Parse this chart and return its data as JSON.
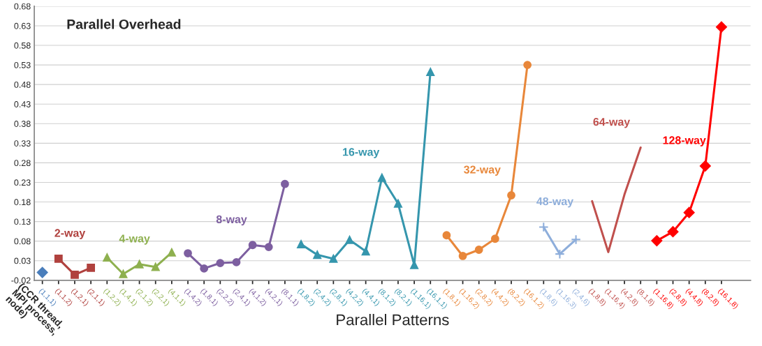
{
  "chart_data": {
    "type": "line",
    "title": "Parallel Overhead",
    "xlabel": "Parallel Patterns",
    "categories": [
      "(1,1,1)",
      "(1,1,2)",
      "(1,2,1)",
      "(2,1,1)",
      "(1,2,2)",
      "(1,4,1)",
      "(2,1,2)",
      "(2,2,1)",
      "(4,1,1)",
      "(1,4,2)",
      "(1,8,1)",
      "(2,2,2)",
      "(2,4,1)",
      "(4,1,2)",
      "(4,2,1)",
      "(8,1,1)",
      "(1,8,2)",
      "(2,4,2)",
      "(2,8,1)",
      "(4,2,2)",
      "(4,4,1)",
      "(8,1,2)",
      "(8,2,1)",
      "(1,16,1)",
      "(16,1,1)",
      "(1,8,1)",
      "(1,16,2)",
      "(2,8,2)",
      "(4,4,2)",
      "(8,2,2)",
      "(16,1,2)",
      "(1,8,6)",
      "(1,16,3)",
      "(2,4,6)",
      "(1,8,8)",
      "(1,16,4)",
      "(4,2,8)",
      "(8,1,8)",
      "(1,16,8)",
      "(2,8,8)",
      "(4,4,8)",
      "(8,2,8)",
      "(16,1,8)"
    ],
    "series": [
      {
        "color": "#4a7ebb",
        "marker": "diamond",
        "values": [
          0.0,
          null,
          null,
          null,
          null,
          null,
          null,
          null,
          null,
          null,
          null,
          null,
          null,
          null,
          null,
          null,
          null,
          null,
          null,
          null,
          null,
          null,
          null,
          null,
          null,
          null,
          null,
          null,
          null,
          null,
          null,
          null,
          null,
          null,
          null,
          null,
          null,
          null,
          null,
          null,
          null,
          null,
          null
        ]
      },
      {
        "name": "2-way",
        "color": "#b0413e",
        "marker": "square",
        "values": [
          null,
          0.035,
          -0.006,
          0.012,
          null,
          null,
          null,
          null,
          null,
          null,
          null,
          null,
          null,
          null,
          null,
          null,
          null,
          null,
          null,
          null,
          null,
          null,
          null,
          null,
          null,
          null,
          null,
          null,
          null,
          null,
          null,
          null,
          null,
          null,
          null,
          null,
          null,
          null,
          null,
          null,
          null,
          null,
          null
        ]
      },
      {
        "name": "4-way",
        "color": "#8eb04f",
        "marker": "triangle",
        "values": [
          null,
          null,
          null,
          null,
          0.038,
          -0.004,
          0.021,
          0.014,
          0.051,
          null,
          null,
          null,
          null,
          null,
          null,
          null,
          null,
          null,
          null,
          null,
          null,
          null,
          null,
          null,
          null,
          null,
          null,
          null,
          null,
          null,
          null,
          null,
          null,
          null,
          null,
          null,
          null,
          null,
          null,
          null,
          null,
          null,
          null
        ]
      },
      {
        "name": "8-way",
        "color": "#7d5fa0",
        "marker": "circle",
        "values": [
          null,
          null,
          null,
          null,
          null,
          null,
          null,
          null,
          null,
          0.049,
          0.01,
          0.024,
          0.026,
          0.07,
          0.065,
          0.226,
          null,
          null,
          null,
          null,
          null,
          null,
          null,
          null,
          null,
          null,
          null,
          null,
          null,
          null,
          null,
          null,
          null,
          null,
          null,
          null,
          null,
          null,
          null,
          null,
          null,
          null,
          null
        ]
      },
      {
        "name": "16-way",
        "color": "#3596ad",
        "marker": "triangle",
        "values": [
          null,
          null,
          null,
          null,
          null,
          null,
          null,
          null,
          null,
          null,
          null,
          null,
          null,
          null,
          null,
          null,
          0.072,
          0.045,
          0.035,
          0.083,
          0.054,
          0.242,
          0.176,
          0.019,
          0.512,
          null,
          null,
          null,
          null,
          null,
          null,
          null,
          null,
          null,
          null,
          null,
          null,
          null,
          null,
          null,
          null,
          null,
          null
        ]
      },
      {
        "name": "32-way",
        "color": "#e8873a",
        "marker": "circle",
        "values": [
          null,
          null,
          null,
          null,
          null,
          null,
          null,
          null,
          null,
          null,
          null,
          null,
          null,
          null,
          null,
          null,
          null,
          null,
          null,
          null,
          null,
          null,
          null,
          null,
          null,
          0.095,
          0.042,
          0.058,
          0.086,
          0.197,
          0.53,
          null,
          null,
          null,
          null,
          null,
          null,
          null,
          null,
          null,
          null,
          null,
          null
        ]
      },
      {
        "name": "48-way",
        "color": "#8eaedb",
        "marker": "cross",
        "values": [
          null,
          null,
          null,
          null,
          null,
          null,
          null,
          null,
          null,
          null,
          null,
          null,
          null,
          null,
          null,
          null,
          null,
          null,
          null,
          null,
          null,
          null,
          null,
          null,
          null,
          null,
          null,
          null,
          null,
          null,
          null,
          0.116,
          0.047,
          0.084,
          null,
          null,
          null,
          null,
          null,
          null,
          null,
          null,
          null
        ]
      },
      {
        "name": "64-way",
        "color": "#c0504d",
        "marker": "none",
        "values": [
          null,
          null,
          null,
          null,
          null,
          null,
          null,
          null,
          null,
          null,
          null,
          null,
          null,
          null,
          null,
          null,
          null,
          null,
          null,
          null,
          null,
          null,
          null,
          null,
          null,
          null,
          null,
          null,
          null,
          null,
          null,
          null,
          null,
          null,
          0.182,
          0.052,
          0.199,
          0.319,
          null,
          null,
          null,
          null,
          null
        ]
      },
      {
        "name": "128-way",
        "color": "#ff0000",
        "marker": "diamond",
        "values": [
          null,
          null,
          null,
          null,
          null,
          null,
          null,
          null,
          null,
          null,
          null,
          null,
          null,
          null,
          null,
          null,
          null,
          null,
          null,
          null,
          null,
          null,
          null,
          null,
          null,
          null,
          null,
          null,
          null,
          null,
          null,
          null,
          null,
          null,
          null,
          null,
          null,
          null,
          0.081,
          0.104,
          0.153,
          0.272,
          0.627
        ]
      }
    ],
    "ylim": [
      -0.02,
      0.68
    ],
    "yticks": [
      -0.02,
      0.03,
      0.08,
      0.13,
      0.18,
      0.23,
      0.28,
      0.33,
      0.38,
      0.43,
      0.48,
      0.53,
      0.58,
      0.63,
      0.68
    ],
    "grid": "y",
    "legend": false,
    "annotations": [
      "(CCR thread,\nMPI process,\nnode)"
    ]
  }
}
